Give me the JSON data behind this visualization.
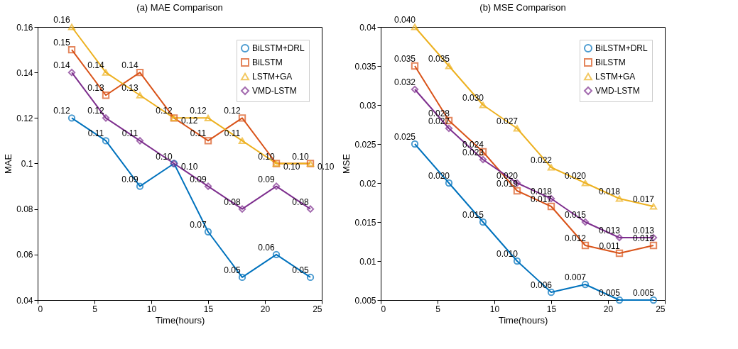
{
  "chart_data": [
    {
      "type": "line",
      "title": "(a) MAE Comparison",
      "xlabel": "Time(hours)",
      "ylabel": "MAE",
      "x": [
        3,
        6,
        9,
        12,
        15,
        18,
        21,
        24
      ],
      "xlim": [
        0,
        25
      ],
      "xticks": [
        0,
        5,
        10,
        15,
        20,
        25
      ],
      "ylim": [
        0.04,
        0.16
      ],
      "yticks": [
        0.04,
        0.06,
        0.08,
        0.1,
        0.12,
        0.14,
        0.16
      ],
      "grid": false,
      "legend": "top right",
      "line_style": "solid",
      "series": [
        {
          "name": "BiLSTM+DRL",
          "color": "#0072bd",
          "marker": "circle",
          "values": [
            0.12,
            0.11,
            0.09,
            0.1,
            0.07,
            0.05,
            0.06,
            0.05
          ],
          "value_labels": [
            "0.12",
            "0.11",
            "0.09",
            "0.10",
            "0.07",
            "0.05",
            "0.06",
            "0.05"
          ]
        },
        {
          "name": "BiLSTM",
          "color": "#d95319",
          "marker": "square",
          "values": [
            0.15,
            0.13,
            0.14,
            0.12,
            0.11,
            0.12,
            0.1,
            0.1
          ],
          "value_labels": [
            "0.15",
            "0.13",
            "0.14",
            "0.12",
            "0.11",
            "0.12",
            "0.10",
            "0.10"
          ]
        },
        {
          "name": "LSTM+GA",
          "color": "#edb120",
          "marker": "triangle",
          "values": [
            0.16,
            0.14,
            0.13,
            0.12,
            0.12,
            0.11,
            0.1,
            0.1
          ],
          "value_labels": [
            "0.16",
            "0.14",
            "0.13",
            "0.12",
            "0.12",
            "0.11",
            "0.10",
            "0.10"
          ]
        },
        {
          "name": "VMD-LSTM",
          "color": "#7e2f8e",
          "marker": "diamond",
          "values": [
            0.14,
            0.12,
            0.11,
            0.1,
            0.09,
            0.08,
            0.09,
            0.08
          ],
          "value_labels": [
            "0.14",
            "0.12",
            "0.11",
            "0.10",
            "0.09",
            "0.08",
            "0.09",
            "0.08"
          ]
        }
      ]
    },
    {
      "type": "line",
      "title": "(b) MSE Comparison",
      "xlabel": "Time(hours)",
      "ylabel": "MSE",
      "x": [
        3,
        6,
        9,
        12,
        15,
        18,
        21,
        24
      ],
      "xlim": [
        0,
        25
      ],
      "xticks": [
        0,
        5,
        10,
        15,
        20,
        25
      ],
      "ylim": [
        0.005,
        0.04
      ],
      "yticks": [
        0.005,
        0.01,
        0.015,
        0.02,
        0.025,
        0.03,
        0.035,
        0.04
      ],
      "grid": false,
      "legend": "top right",
      "line_style": "solid",
      "series": [
        {
          "name": "BiLSTM+DRL",
          "color": "#0072bd",
          "marker": "circle",
          "values": [
            0.025,
            0.02,
            0.015,
            0.01,
            0.006,
            0.007,
            0.005,
            0.005
          ],
          "value_labels": [
            "0.025",
            "0.020",
            "0.015",
            "0.010",
            "0.006",
            "0.007",
            "0.005",
            "0.005"
          ]
        },
        {
          "name": "BiLSTM",
          "color": "#d95319",
          "marker": "square",
          "values": [
            0.035,
            0.028,
            0.024,
            0.019,
            0.017,
            0.012,
            0.011,
            0.012
          ],
          "value_labels": [
            "0.035",
            "0.028",
            "0.024",
            "0.019",
            "0.017",
            "0.012",
            "0.011",
            "0.012"
          ]
        },
        {
          "name": "LSTM+GA",
          "color": "#edb120",
          "marker": "triangle",
          "values": [
            0.04,
            0.035,
            0.03,
            0.027,
            0.022,
            0.02,
            0.018,
            0.017
          ],
          "value_labels": [
            "0.040",
            "0.035",
            "0.030",
            "0.027",
            "0.022",
            "0.020",
            "0.018",
            "0.017"
          ]
        },
        {
          "name": "VMD-LSTM",
          "color": "#7e2f8e",
          "marker": "diamond",
          "values": [
            0.032,
            0.027,
            0.023,
            0.02,
            0.018,
            0.015,
            0.013,
            0.013
          ],
          "value_labels": [
            "0.032",
            "0.027",
            "0.023",
            "0.020",
            "0.018",
            "0.015",
            "0.013",
            "0.013"
          ]
        }
      ]
    }
  ]
}
